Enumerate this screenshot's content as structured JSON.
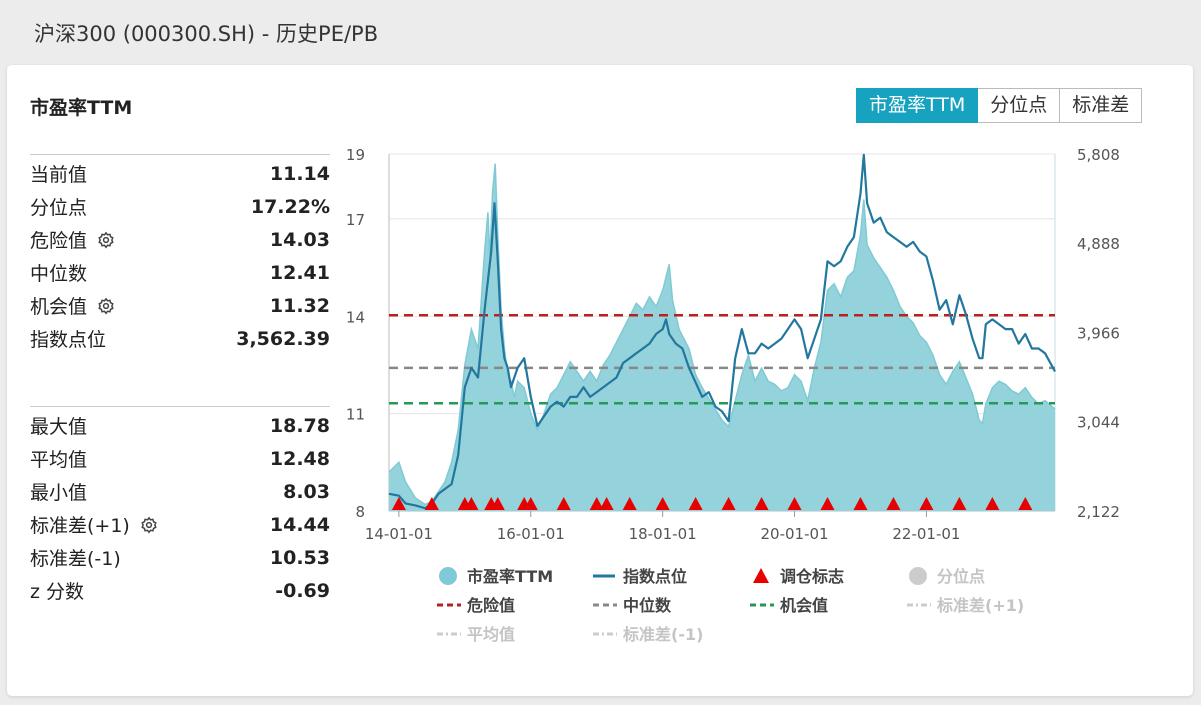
{
  "page": {
    "title": "沪深300 (000300.SH) - 历史PE/PB"
  },
  "panel": {
    "title": "市盈率TTM"
  },
  "tabs": [
    {
      "label": "市盈率TTM",
      "active": true
    },
    {
      "label": "分位点",
      "active": false
    },
    {
      "label": "标准差",
      "active": false
    }
  ],
  "stats_top": [
    {
      "label": "当前值",
      "value": "11.14",
      "gear": false
    },
    {
      "label": "分位点",
      "value": "17.22%",
      "gear": false
    },
    {
      "label": "危险值",
      "value": "14.03",
      "gear": true
    },
    {
      "label": "中位数",
      "value": "12.41",
      "gear": false
    },
    {
      "label": "机会值",
      "value": "11.32",
      "gear": true
    },
    {
      "label": "指数点位",
      "value": "3,562.39",
      "gear": false
    }
  ],
  "stats_bottom": [
    {
      "label": "最大值",
      "value": "18.78",
      "gear": false
    },
    {
      "label": "平均值",
      "value": "12.48",
      "gear": false
    },
    {
      "label": "最小值",
      "value": "8.03",
      "gear": false
    },
    {
      "label": "标准差(+1)",
      "value": "14.44",
      "gear": true
    },
    {
      "label": "标准差(-1)",
      "value": "10.53",
      "gear": false
    },
    {
      "label": "z 分数",
      "value": "-0.69",
      "gear": false
    }
  ],
  "colors": {
    "pe_fill": "#94d3db",
    "pe_line": "#7fcad4",
    "index_line": "#23779f",
    "danger": "#b7211f",
    "median": "#888888",
    "opportunity": "#239a55",
    "marker": "#e60000",
    "disabled": "#cccccc",
    "accent": "#17a2c0"
  },
  "chart_data": {
    "type": "area",
    "x_ticks": [
      "14-01-01",
      "16-01-01",
      "18-01-01",
      "20-01-01",
      "22-01-01"
    ],
    "x_tick_positions": [
      2014.0,
      2016.0,
      2018.0,
      2020.0,
      2022.0
    ],
    "x_range": [
      2013.85,
      2023.95
    ],
    "y_left": {
      "ticks": [
        "8",
        "11",
        "14",
        "17",
        "19"
      ],
      "tick_values": [
        8,
        11,
        14,
        17,
        19
      ],
      "range": [
        8,
        19
      ]
    },
    "y_right": {
      "ticks": [
        "2,122",
        "3,044",
        "3,966",
        "4,888",
        "5,808"
      ],
      "tick_values": [
        2122,
        3044,
        3966,
        4888,
        5808
      ],
      "range": [
        2122,
        5808
      ]
    },
    "reference_lines": {
      "danger": 14.03,
      "median": 12.41,
      "opportunity": 11.32
    },
    "series": [
      {
        "name": "市盈率TTM",
        "axis": "left",
        "points": [
          [
            2013.85,
            9.2
          ],
          [
            2014.0,
            9.5
          ],
          [
            2014.1,
            8.9
          ],
          [
            2014.25,
            8.4
          ],
          [
            2014.4,
            8.2
          ],
          [
            2014.5,
            8.3
          ],
          [
            2014.6,
            8.6
          ],
          [
            2014.7,
            8.9
          ],
          [
            2014.8,
            9.5
          ],
          [
            2014.9,
            10.5
          ],
          [
            2015.0,
            12.5
          ],
          [
            2015.1,
            13.6
          ],
          [
            2015.2,
            13.0
          ],
          [
            2015.25,
            14.5
          ],
          [
            2015.3,
            16.0
          ],
          [
            2015.35,
            17.2
          ],
          [
            2015.38,
            15.8
          ],
          [
            2015.42,
            17.8
          ],
          [
            2015.46,
            18.7
          ],
          [
            2015.5,
            16.5
          ],
          [
            2015.55,
            14.2
          ],
          [
            2015.6,
            13.0
          ],
          [
            2015.65,
            12.2
          ],
          [
            2015.7,
            12.0
          ],
          [
            2015.75,
            11.5
          ],
          [
            2015.8,
            12.0
          ],
          [
            2015.9,
            11.8
          ],
          [
            2016.0,
            11.0
          ],
          [
            2016.1,
            10.5
          ],
          [
            2016.2,
            11.0
          ],
          [
            2016.3,
            11.6
          ],
          [
            2016.4,
            11.8
          ],
          [
            2016.5,
            12.2
          ],
          [
            2016.6,
            12.6
          ],
          [
            2016.7,
            12.3
          ],
          [
            2016.8,
            12.0
          ],
          [
            2016.9,
            12.3
          ],
          [
            2017.0,
            12.0
          ],
          [
            2017.1,
            12.5
          ],
          [
            2017.2,
            12.8
          ],
          [
            2017.3,
            13.2
          ],
          [
            2017.4,
            13.6
          ],
          [
            2017.5,
            14.0
          ],
          [
            2017.6,
            14.4
          ],
          [
            2017.7,
            14.2
          ],
          [
            2017.8,
            14.6
          ],
          [
            2017.9,
            14.3
          ],
          [
            2018.0,
            14.8
          ],
          [
            2018.1,
            15.6
          ],
          [
            2018.15,
            14.5
          ],
          [
            2018.25,
            13.6
          ],
          [
            2018.4,
            13.0
          ],
          [
            2018.5,
            12.2
          ],
          [
            2018.6,
            11.8
          ],
          [
            2018.75,
            11.3
          ],
          [
            2018.9,
            10.8
          ],
          [
            2019.0,
            10.6
          ],
          [
            2019.1,
            11.4
          ],
          [
            2019.2,
            12.2
          ],
          [
            2019.3,
            12.8
          ],
          [
            2019.4,
            12.0
          ],
          [
            2019.5,
            12.4
          ],
          [
            2019.6,
            12.0
          ],
          [
            2019.7,
            11.9
          ],
          [
            2019.8,
            11.7
          ],
          [
            2019.9,
            11.8
          ],
          [
            2020.0,
            12.2
          ],
          [
            2020.1,
            12.0
          ],
          [
            2020.2,
            11.4
          ],
          [
            2020.3,
            12.4
          ],
          [
            2020.4,
            13.2
          ],
          [
            2020.5,
            14.8
          ],
          [
            2020.6,
            15.0
          ],
          [
            2020.7,
            14.6
          ],
          [
            2020.8,
            15.2
          ],
          [
            2020.9,
            15.4
          ],
          [
            2021.0,
            16.5
          ],
          [
            2021.05,
            17.6
          ],
          [
            2021.1,
            16.2
          ],
          [
            2021.2,
            15.8
          ],
          [
            2021.3,
            15.5
          ],
          [
            2021.4,
            15.2
          ],
          [
            2021.5,
            14.8
          ],
          [
            2021.6,
            14.3
          ],
          [
            2021.7,
            14.0
          ],
          [
            2021.8,
            13.8
          ],
          [
            2021.9,
            13.4
          ],
          [
            2022.0,
            13.2
          ],
          [
            2022.1,
            12.8
          ],
          [
            2022.2,
            12.2
          ],
          [
            2022.3,
            11.9
          ],
          [
            2022.4,
            12.3
          ],
          [
            2022.5,
            12.6
          ],
          [
            2022.6,
            12.1
          ],
          [
            2022.7,
            11.6
          ],
          [
            2022.8,
            10.8
          ],
          [
            2022.85,
            10.7
          ],
          [
            2022.9,
            11.3
          ],
          [
            2023.0,
            11.8
          ],
          [
            2023.1,
            12.0
          ],
          [
            2023.2,
            11.9
          ],
          [
            2023.3,
            11.7
          ],
          [
            2023.4,
            11.6
          ],
          [
            2023.5,
            11.8
          ],
          [
            2023.6,
            11.5
          ],
          [
            2023.7,
            11.3
          ],
          [
            2023.8,
            11.4
          ],
          [
            2023.95,
            11.14
          ]
        ]
      },
      {
        "name": "指数点位",
        "axis": "right",
        "points": [
          [
            2013.85,
            2300
          ],
          [
            2014.0,
            2280
          ],
          [
            2014.1,
            2200
          ],
          [
            2014.25,
            2180
          ],
          [
            2014.4,
            2150
          ],
          [
            2014.5,
            2200
          ],
          [
            2014.6,
            2300
          ],
          [
            2014.7,
            2350
          ],
          [
            2014.8,
            2400
          ],
          [
            2014.9,
            2700
          ],
          [
            2015.0,
            3400
          ],
          [
            2015.1,
            3600
          ],
          [
            2015.2,
            3500
          ],
          [
            2015.3,
            4200
          ],
          [
            2015.4,
            4800
          ],
          [
            2015.45,
            5300
          ],
          [
            2015.5,
            4700
          ],
          [
            2015.55,
            4000
          ],
          [
            2015.6,
            3700
          ],
          [
            2015.65,
            3600
          ],
          [
            2015.7,
            3400
          ],
          [
            2015.8,
            3600
          ],
          [
            2015.9,
            3700
          ],
          [
            2016.0,
            3300
          ],
          [
            2016.1,
            3000
          ],
          [
            2016.2,
            3100
          ],
          [
            2016.3,
            3200
          ],
          [
            2016.4,
            3250
          ],
          [
            2016.5,
            3200
          ],
          [
            2016.6,
            3300
          ],
          [
            2016.7,
            3300
          ],
          [
            2016.8,
            3400
          ],
          [
            2016.9,
            3300
          ],
          [
            2017.0,
            3350
          ],
          [
            2017.1,
            3400
          ],
          [
            2017.2,
            3450
          ],
          [
            2017.3,
            3500
          ],
          [
            2017.4,
            3650
          ],
          [
            2017.5,
            3700
          ],
          [
            2017.6,
            3750
          ],
          [
            2017.7,
            3800
          ],
          [
            2017.8,
            3850
          ],
          [
            2017.9,
            3950
          ],
          [
            2018.0,
            4000
          ],
          [
            2018.05,
            4100
          ],
          [
            2018.1,
            3950
          ],
          [
            2018.2,
            3850
          ],
          [
            2018.3,
            3800
          ],
          [
            2018.4,
            3600
          ],
          [
            2018.5,
            3450
          ],
          [
            2018.6,
            3300
          ],
          [
            2018.7,
            3350
          ],
          [
            2018.8,
            3200
          ],
          [
            2018.9,
            3150
          ],
          [
            2019.0,
            3050
          ],
          [
            2019.1,
            3700
          ],
          [
            2019.2,
            4000
          ],
          [
            2019.3,
            3750
          ],
          [
            2019.4,
            3750
          ],
          [
            2019.5,
            3850
          ],
          [
            2019.6,
            3800
          ],
          [
            2019.7,
            3850
          ],
          [
            2019.8,
            3900
          ],
          [
            2019.9,
            4000
          ],
          [
            2020.0,
            4100
          ],
          [
            2020.1,
            4000
          ],
          [
            2020.2,
            3700
          ],
          [
            2020.3,
            3900
          ],
          [
            2020.4,
            4100
          ],
          [
            2020.5,
            4700
          ],
          [
            2020.6,
            4650
          ],
          [
            2020.7,
            4700
          ],
          [
            2020.8,
            4850
          ],
          [
            2020.9,
            4950
          ],
          [
            2021.0,
            5400
          ],
          [
            2021.05,
            5800
          ],
          [
            2021.1,
            5300
          ],
          [
            2021.2,
            5100
          ],
          [
            2021.3,
            5150
          ],
          [
            2021.4,
            5000
          ],
          [
            2021.5,
            4950
          ],
          [
            2021.6,
            4900
          ],
          [
            2021.7,
            4850
          ],
          [
            2021.8,
            4900
          ],
          [
            2021.9,
            4800
          ],
          [
            2022.0,
            4750
          ],
          [
            2022.1,
            4500
          ],
          [
            2022.2,
            4200
          ],
          [
            2022.3,
            4300
          ],
          [
            2022.4,
            4050
          ],
          [
            2022.5,
            4350
          ],
          [
            2022.6,
            4150
          ],
          [
            2022.7,
            3900
          ],
          [
            2022.8,
            3700
          ],
          [
            2022.85,
            3700
          ],
          [
            2022.9,
            4050
          ],
          [
            2023.0,
            4100
          ],
          [
            2023.1,
            4050
          ],
          [
            2023.2,
            4000
          ],
          [
            2023.3,
            4000
          ],
          [
            2023.4,
            3850
          ],
          [
            2023.5,
            3950
          ],
          [
            2023.6,
            3800
          ],
          [
            2023.7,
            3800
          ],
          [
            2023.8,
            3750
          ],
          [
            2023.95,
            3562
          ]
        ]
      }
    ],
    "markers": [
      2014.0,
      2014.5,
      2015.0,
      2015.1,
      2015.4,
      2015.5,
      2015.9,
      2016.0,
      2016.5,
      2017.0,
      2017.15,
      2017.5,
      2018.0,
      2018.5,
      2019.0,
      2019.5,
      2020.0,
      2020.5,
      2021.0,
      2021.5,
      2022.0,
      2022.5,
      2023.0,
      2023.5
    ],
    "legend": [
      {
        "label": "市盈率TTM",
        "kind": "dot",
        "color": "#7fcad4",
        "enabled": true
      },
      {
        "label": "指数点位",
        "kind": "line",
        "color": "#23779f",
        "enabled": true
      },
      {
        "label": "调仓标志",
        "kind": "triangle",
        "color": "#e60000",
        "enabled": true
      },
      {
        "label": "分位点",
        "kind": "dot",
        "color": "#cccccc",
        "enabled": false
      },
      {
        "label": "危险值",
        "kind": "dash",
        "color": "#b7211f",
        "enabled": true
      },
      {
        "label": "中位数",
        "kind": "dash",
        "color": "#888888",
        "enabled": true
      },
      {
        "label": "机会值",
        "kind": "dash",
        "color": "#239a55",
        "enabled": true
      },
      {
        "label": "标准差(+1)",
        "kind": "dashdot",
        "color": "#cccccc",
        "enabled": false
      },
      {
        "label": "平均值",
        "kind": "dashdot",
        "color": "#cccccc",
        "enabled": false
      },
      {
        "label": "标准差(-1)",
        "kind": "dashdot",
        "color": "#cccccc",
        "enabled": false
      }
    ]
  }
}
